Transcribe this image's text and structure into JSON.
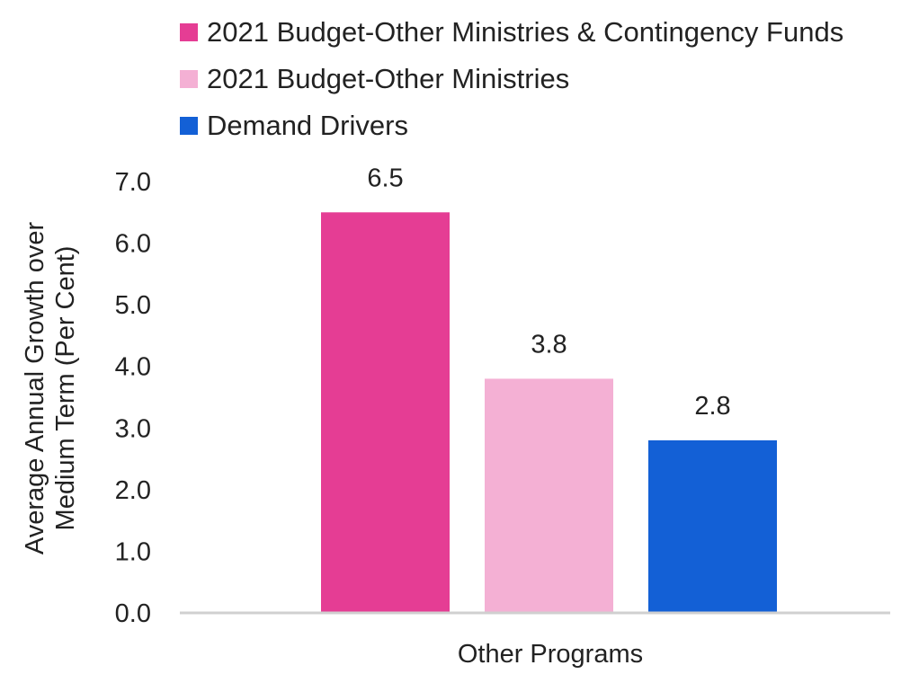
{
  "chart_data": {
    "type": "bar",
    "categories": [
      "Other Programs"
    ],
    "series": [
      {
        "name": "2021 Budget-Other Ministries & Contingency Funds",
        "values": [
          6.5
        ],
        "color": "#e53d94",
        "value_label": "6.5"
      },
      {
        "name": "2021 Budget-Other Ministries",
        "values": [
          3.8
        ],
        "color": "#f4b0d4",
        "value_label": "3.8"
      },
      {
        "name": "Demand Drivers",
        "values": [
          2.8
        ],
        "color": "#1360d6",
        "value_label": "2.8"
      }
    ],
    "title": "",
    "xlabel": "",
    "ylabel": "Average Annual Growth over Medium Term (Per Cent)",
    "ylabel_lines": [
      "Average Annual Growth over",
      "Medium Term (Per Cent)"
    ],
    "ylim": [
      0,
      7
    ],
    "yticks": [
      "0.0",
      "1.0",
      "2.0",
      "3.0",
      "4.0",
      "5.0",
      "6.0",
      "7.0"
    ],
    "grid": false,
    "legend_position": "top"
  }
}
